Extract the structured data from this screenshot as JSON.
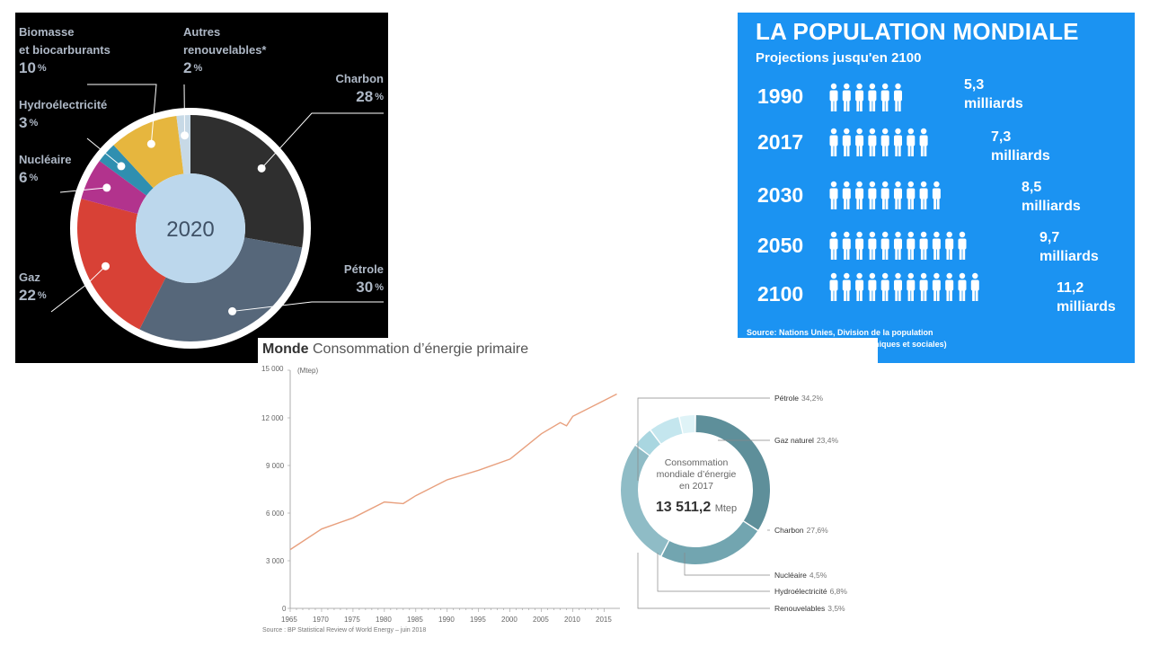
{
  "energy_mix": {
    "center_label": "2020",
    "colors": {
      "background": "#000000",
      "ring": "#ffffff",
      "center": "#bcd7ec",
      "label": "#aeb8c6"
    },
    "segments": [
      {
        "name": "Charbon",
        "pct_value": 28,
        "pct": "28",
        "unit": "%",
        "color": "#2f2f2f"
      },
      {
        "name": "Pétrole",
        "pct_value": 30,
        "pct": "30",
        "unit": "%",
        "color": "#56677a"
      },
      {
        "name": "Gaz",
        "pct_value": 22,
        "pct": "22",
        "unit": "%",
        "color": "#d84136"
      },
      {
        "name": "Nucléaire",
        "pct_value": 6,
        "pct": "6",
        "unit": "%",
        "color": "#b2338d"
      },
      {
        "name": "Hydroélectricité",
        "pct_value": 3,
        "pct": "3",
        "unit": "%",
        "color": "#2f8fb0"
      },
      {
        "name": "Biomasse\net biocarburants",
        "pct_value": 10,
        "pct": "10",
        "unit": "%",
        "color": "#e6b63e"
      },
      {
        "name": "Autres\nrenouvelables*",
        "pct_value": 2,
        "pct": "2",
        "unit": "%",
        "color": "#c7d9e6"
      }
    ]
  },
  "population": {
    "title": "LA POPULATION MONDIALE",
    "subtitle": "Projections jusqu'en 2100",
    "background": "#1b93f2",
    "rows": [
      {
        "year": "1990",
        "people_count": 6,
        "value": "5,3",
        "unit": "milliards"
      },
      {
        "year": "2017",
        "people_count": 8,
        "value": "7,3",
        "unit": "milliards"
      },
      {
        "year": "2030",
        "people_count": 9,
        "value": "8,5",
        "unit": "milliards"
      },
      {
        "year": "2050",
        "people_count": 11,
        "value": "9,7",
        "unit": "milliards"
      },
      {
        "year": "2100",
        "people_count": 12,
        "value": "11,2",
        "unit": "milliards"
      }
    ],
    "source_line1": "Source:  Nations Unies, Division de la population",
    "source_line2": "(Département des affaires économiques et sociales)"
  },
  "world_consumption": {
    "title_bold": "Monde",
    "title_rest": " Consommation d’énergie primaire",
    "unit": "(Mtep)",
    "source": "Source : BP Statistical Review of World Energy – juin 2018",
    "y_ticks": [
      "15 000",
      "12 000",
      "9 000",
      "6 000",
      "3 000",
      "0"
    ],
    "x_ticks": [
      "1965",
      "1970",
      "1975",
      "1980",
      "1985",
      "1990",
      "1995",
      "2000",
      "2005",
      "2010",
      "2015"
    ],
    "donut_center": {
      "line1": "Consommation",
      "line2": "mondiale d’énergie",
      "line3": "en 2017",
      "value": "13 511,2",
      "unit": "Mtep"
    },
    "legend": [
      {
        "name": "Pétrole",
        "pct": "34,2%",
        "color": "#5e8f9a"
      },
      {
        "name": "Gaz naturel",
        "pct": "23,4%",
        "color": "#72a5b0"
      },
      {
        "name": "Charbon",
        "pct": "27,6%",
        "color": "#8fbcc6"
      },
      {
        "name": "Nucléaire",
        "pct": "4,5%",
        "color": "#a9d6e0"
      },
      {
        "name": "Hydroélectricité",
        "pct": "6,8%",
        "color": "#c4e6ee"
      },
      {
        "name": "Renouvelables",
        "pct": "3,5%",
        "color": "#dff3f7"
      }
    ],
    "line_color": "#e8a07e"
  },
  "chart_data": [
    {
      "type": "pie",
      "title": "2020",
      "categories": [
        "Charbon",
        "Pétrole",
        "Gaz",
        "Nucléaire",
        "Hydroélectricité",
        "Biomasse et biocarburants",
        "Autres renouvelables*"
      ],
      "values": [
        28,
        30,
        22,
        6,
        3,
        10,
        2
      ]
    },
    {
      "type": "bar",
      "title": "LA POPULATION MONDIALE",
      "subtitle": "Projections jusqu'en 2100",
      "categories": [
        "1990",
        "2017",
        "2030",
        "2050",
        "2100"
      ],
      "values": [
        5.3,
        7.3,
        8.5,
        9.7,
        11.2
      ],
      "unit": "milliards"
    },
    {
      "type": "line",
      "title": "Monde Consommation d’énergie primaire",
      "ylabel": "(Mtep)",
      "ylim": [
        0,
        15000
      ],
      "x": [
        1965,
        1970,
        1975,
        1980,
        1983,
        1985,
        1990,
        1995,
        2000,
        2005,
        2008,
        2009,
        2010,
        2015,
        2017
      ],
      "series": [
        {
          "values": [
            3700,
            5000,
            5700,
            6700,
            6600,
            7100,
            8100,
            8700,
            9400,
            11000,
            11700,
            11500,
            12100,
            13100,
            13500
          ]
        }
      ]
    },
    {
      "type": "pie",
      "title": "Consommation mondiale d’énergie en 2017",
      "categories": [
        "Pétrole",
        "Gaz naturel",
        "Charbon",
        "Nucléaire",
        "Hydroélectricité",
        "Renouvelables"
      ],
      "values": [
        34.2,
        23.4,
        27.6,
        4.5,
        6.8,
        3.5
      ]
    }
  ]
}
